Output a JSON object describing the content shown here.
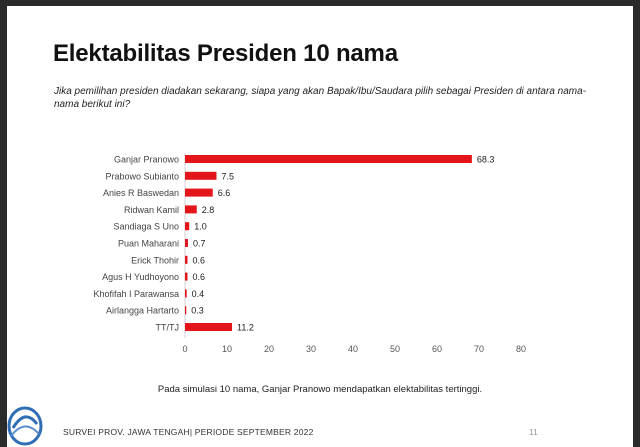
{
  "slide": {
    "title": "Elektabilitas Presiden 10 nama",
    "question": "Jika pemilihan presiden diadakan sekarang, siapa yang akan Bapak/Ibu/Saudara pilih sebagai Presiden di antara nama-nama berikut ini?",
    "footnote": "Pada simulasi 10 nama, Ganjar Pranowo mendapatkan elektabilitas tertinggi.",
    "footer": "SURVEI PROV. JAWA TENGAH| PERIODE SEPTEMBER 2022",
    "page_number": "11",
    "logo_icon": "survey-logo-icon"
  },
  "chart_data": {
    "type": "bar",
    "orientation": "horizontal",
    "categories": [
      "Ganjar Pranowo",
      "Prabowo Subianto",
      "Anies R Baswedan",
      "Ridwan Kamil",
      "Sandiaga S Uno",
      "Puan Maharani",
      "Erick Thohir",
      "Agus H Yudhoyono",
      "Khofifah I Parawansa",
      "Airlangga Hartarto",
      "TT/TJ"
    ],
    "values": [
      68.3,
      7.5,
      6.6,
      2.8,
      1.0,
      0.7,
      0.6,
      0.6,
      0.4,
      0.3,
      11.2
    ],
    "value_labels": [
      "68.3",
      "7.5",
      "6.6",
      "2.8",
      "1.0",
      "0.7",
      "0.6",
      "0.6",
      "0.4",
      "0.3",
      "11.2"
    ],
    "xlim": [
      0,
      80
    ],
    "xticks": [
      0,
      10,
      20,
      30,
      40,
      50,
      60,
      70,
      80
    ],
    "grid": false,
    "bar_color": "#e3151a",
    "title": "",
    "xlabel": "",
    "ylabel": ""
  }
}
